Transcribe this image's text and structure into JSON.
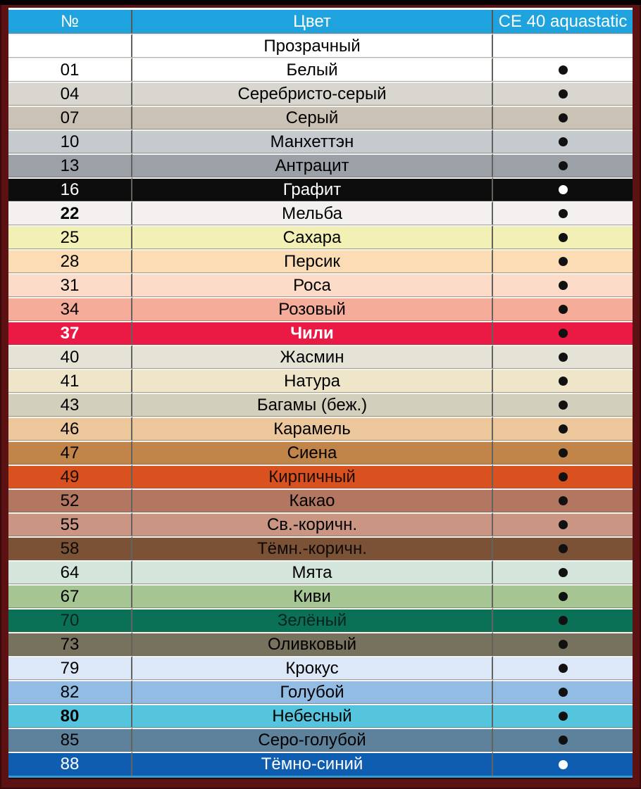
{
  "table": {
    "headers": [
      "№",
      "Цвет",
      "CE 40 aquastatic"
    ],
    "header_bg": "#1ea3de",
    "frame_color": "#5c1113",
    "top_strip_color": "#060203",
    "bottom_accent_color": "#2e9ed6",
    "grid_line_color": "#62625e",
    "rows": [
      {
        "num": "",
        "name": "Прозрачный",
        "bg": "#ffffff",
        "fg": "#000000",
        "dot": false
      },
      {
        "num": "01",
        "name": "Белый",
        "bg": "#ffffff",
        "fg": "#000000",
        "dot": true,
        "dot_color": "#111111"
      },
      {
        "num": "04",
        "name": "Серебристо-серый",
        "bg": "#d9d6cf",
        "fg": "#000000",
        "dot": true,
        "dot_color": "#111111"
      },
      {
        "num": "07",
        "name": "Серый",
        "bg": "#cac3b5",
        "fg": "#000000",
        "dot": true,
        "dot_color": "#111111"
      },
      {
        "num": "10",
        "name": "Манхеттэн",
        "bg": "#c5cacf",
        "fg": "#000000",
        "dot": true,
        "dot_color": "#111111"
      },
      {
        "num": "13",
        "name": "Антрацит",
        "bg": "#9ba1a7",
        "fg": "#000000",
        "dot": true,
        "dot_color": "#111111"
      },
      {
        "num": "16",
        "name": "Графит",
        "bg": "#0d0d0d",
        "fg": "#ffffff",
        "dot": true,
        "dot_color": "#ffffff"
      },
      {
        "num": "22",
        "name": "Мельба",
        "bg": "#f5f0f0",
        "fg": "#000000",
        "dot": true,
        "dot_color": "#111111",
        "num_bold": true
      },
      {
        "num": "25",
        "name": "Сахара",
        "bg": "#f3f0b6",
        "fg": "#000000",
        "dot": true,
        "dot_color": "#111111"
      },
      {
        "num": "28",
        "name": "Персик",
        "bg": "#fbdcb4",
        "fg": "#000000",
        "dot": true,
        "dot_color": "#111111"
      },
      {
        "num": "31",
        "name": "Роса",
        "bg": "#fcdcc8",
        "fg": "#000000",
        "dot": true,
        "dot_color": "#111111"
      },
      {
        "num": "34",
        "name": "Розовый",
        "bg": "#f5ac98",
        "fg": "#000000",
        "dot": true,
        "dot_color": "#111111"
      },
      {
        "num": "37",
        "name": "Чили",
        "bg": "#ea1a45",
        "fg": "#ffffff",
        "dot": true,
        "dot_color": "#111111",
        "num_bold": true,
        "name_bold": true
      },
      {
        "num": "40",
        "name": "Жасмин",
        "bg": "#e5e2d6",
        "fg": "#000000",
        "dot": true,
        "dot_color": "#111111"
      },
      {
        "num": "41",
        "name": "Натура",
        "bg": "#efe5c9",
        "fg": "#000000",
        "dot": true,
        "dot_color": "#111111"
      },
      {
        "num": "43",
        "name": "Багамы (беж.)",
        "bg": "#d2cfbc",
        "fg": "#000000",
        "dot": true,
        "dot_color": "#111111"
      },
      {
        "num": "46",
        "name": "Карамель",
        "bg": "#edc79c",
        "fg": "#000000",
        "dot": true,
        "dot_color": "#111111"
      },
      {
        "num": "47",
        "name": "Сиена",
        "bg": "#c28549",
        "fg": "#000000",
        "dot": true,
        "dot_color": "#111111"
      },
      {
        "num": "49",
        "name": "Кирпичный",
        "bg": "#da5120",
        "fg": "#1a0d06",
        "dot": true,
        "dot_color": "#111111"
      },
      {
        "num": "52",
        "name": "Какао",
        "bg": "#b37660",
        "fg": "#000000",
        "dot": true,
        "dot_color": "#111111"
      },
      {
        "num": "55",
        "name": "Св.-коричн.",
        "bg": "#ca9683",
        "fg": "#000000",
        "dot": true,
        "dot_color": "#111111"
      },
      {
        "num": "58",
        "name": "Тёмн.-коричн.",
        "bg": "#7c5237",
        "fg": "#0d0a07",
        "dot": true,
        "dot_color": "#111111"
      },
      {
        "num": "64",
        "name": "Мята",
        "bg": "#d4e5db",
        "fg": "#000000",
        "dot": true,
        "dot_color": "#111111"
      },
      {
        "num": "67",
        "name": "Киви",
        "bg": "#a5c593",
        "fg": "#000000",
        "dot": true,
        "dot_color": "#111111"
      },
      {
        "num": "70",
        "name": "Зелёный",
        "bg": "#0a7156",
        "fg": "#07241c",
        "dot": true,
        "dot_color": "#111111"
      },
      {
        "num": "73",
        "name": "Оливковый",
        "bg": "#76725d",
        "fg": "#000000",
        "dot": true,
        "dot_color": "#111111"
      },
      {
        "num": "79",
        "name": "Крокус",
        "bg": "#dce8f7",
        "fg": "#000000",
        "dot": true,
        "dot_color": "#111111"
      },
      {
        "num": "82",
        "name": "Голубой",
        "bg": "#93bce4",
        "fg": "#000000",
        "dot": true,
        "dot_color": "#111111"
      },
      {
        "num": "80",
        "name": "Небесный",
        "bg": "#55c5de",
        "fg": "#000000",
        "dot": true,
        "dot_color": "#111111",
        "num_bold": true
      },
      {
        "num": "85",
        "name": "Серо-голубой",
        "bg": "#5e829c",
        "fg": "#000000",
        "dot": true,
        "dot_color": "#111111"
      },
      {
        "num": "88",
        "name": "Тёмно-синий",
        "bg": "#0e5db1",
        "fg": "#ffffff",
        "dot": true,
        "dot_color": "#ffffff"
      }
    ]
  }
}
